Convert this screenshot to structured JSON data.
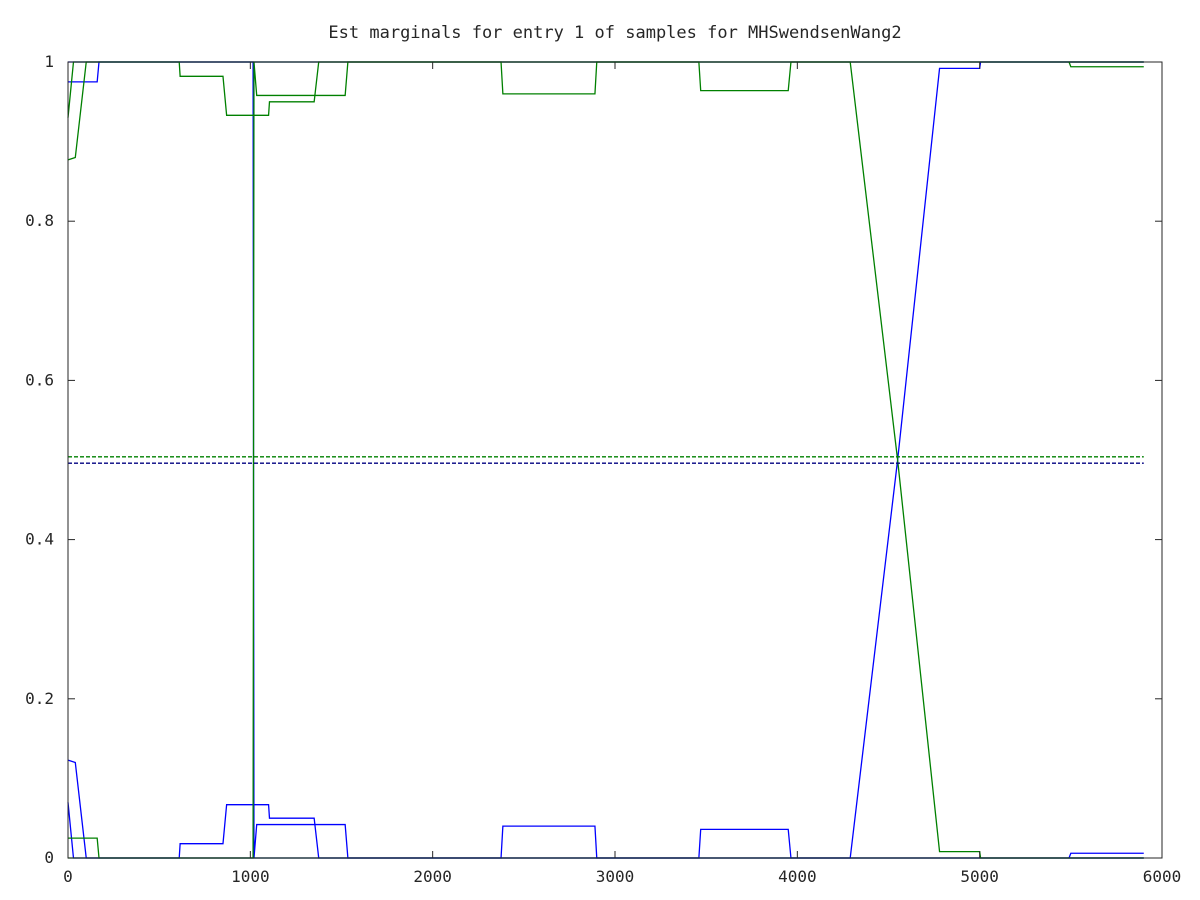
{
  "chart_data": {
    "type": "line",
    "title": "Est marginals for entry 1 of samples for MHSwendsenWang2",
    "xlabel": "",
    "ylabel": "",
    "xlim": [
      0,
      6000
    ],
    "ylim": [
      0,
      1
    ],
    "grid": false,
    "legend": "none",
    "x_ticks": [
      "0",
      "1000",
      "2000",
      "3000",
      "4000",
      "5000",
      "6000"
    ],
    "y_ticks": [
      "0",
      "0.2",
      "0.4",
      "0.6",
      "0.8",
      "1"
    ],
    "series": [
      {
        "color": "#0000ff",
        "style": "solid",
        "points": [
          [
            0,
            0.975
          ],
          [
            160,
            0.975
          ],
          [
            170,
            1.0
          ],
          [
            5900,
            1.0
          ]
        ]
      },
      {
        "color": "#0000ff",
        "style": "solid",
        "points": [
          [
            0,
            0.07
          ],
          [
            30,
            0.0
          ],
          [
            5900,
            0.0
          ]
        ]
      },
      {
        "color": "#0000ff",
        "style": "solid",
        "points": [
          [
            0,
            0.123
          ],
          [
            40,
            0.12
          ],
          [
            100,
            0.0
          ],
          [
            610,
            0.0
          ],
          [
            615,
            0.018
          ],
          [
            850,
            0.018
          ],
          [
            870,
            0.067
          ],
          [
            1100,
            0.067
          ],
          [
            1105,
            0.05
          ],
          [
            1350,
            0.05
          ],
          [
            1375,
            0.0
          ],
          [
            5900,
            0.0
          ]
        ]
      },
      {
        "color": "#0000ff",
        "style": "solid",
        "points": [
          [
            0,
            1.0
          ],
          [
            1015,
            1.0
          ],
          [
            1020,
            0.0
          ],
          [
            1035,
            0.042
          ],
          [
            1520,
            0.042
          ],
          [
            1535,
            0.0
          ],
          [
            2375,
            0.0
          ],
          [
            2385,
            0.04
          ],
          [
            2890,
            0.04
          ],
          [
            2900,
            0.0
          ],
          [
            3460,
            0.0
          ],
          [
            3470,
            0.036
          ],
          [
            3950,
            0.036
          ],
          [
            3965,
            0.0
          ],
          [
            4290,
            0.0
          ],
          [
            4550,
            0.5
          ],
          [
            4780,
            0.992
          ],
          [
            5000,
            0.992
          ],
          [
            5005,
            1.0
          ],
          [
            5900,
            1.0
          ]
        ]
      },
      {
        "color": "#0000ff",
        "style": "solid",
        "points": [
          [
            5490,
            0.0
          ],
          [
            5500,
            0.006
          ],
          [
            5900,
            0.006
          ]
        ]
      },
      {
        "color": "#008000",
        "style": "solid",
        "points": [
          [
            0,
            0.93
          ],
          [
            30,
            1.0
          ],
          [
            5900,
            1.0
          ]
        ]
      },
      {
        "color": "#008000",
        "style": "solid",
        "points": [
          [
            0,
            0.877
          ],
          [
            40,
            0.88
          ],
          [
            100,
            1.0
          ],
          [
            610,
            1.0
          ],
          [
            615,
            0.982
          ],
          [
            850,
            0.982
          ],
          [
            870,
            0.933
          ],
          [
            1100,
            0.933
          ],
          [
            1105,
            0.95
          ],
          [
            1350,
            0.95
          ],
          [
            1375,
            1.0
          ],
          [
            5900,
            1.0
          ]
        ]
      },
      {
        "color": "#008000",
        "style": "solid",
        "points": [
          [
            0,
            0.0
          ],
          [
            1015,
            0.0
          ],
          [
            1020,
            1.0
          ],
          [
            1035,
            0.958
          ],
          [
            1520,
            0.958
          ],
          [
            1535,
            1.0
          ],
          [
            2375,
            1.0
          ],
          [
            2385,
            0.96
          ],
          [
            2890,
            0.96
          ],
          [
            2900,
            1.0
          ],
          [
            3460,
            1.0
          ],
          [
            3470,
            0.964
          ],
          [
            3950,
            0.964
          ],
          [
            3965,
            1.0
          ],
          [
            4290,
            1.0
          ],
          [
            4550,
            0.5
          ],
          [
            4780,
            0.008
          ],
          [
            5000,
            0.008
          ],
          [
            5005,
            0.0
          ],
          [
            5900,
            0.0
          ]
        ]
      },
      {
        "color": "#008000",
        "style": "solid",
        "points": [
          [
            0,
            0.025
          ],
          [
            160,
            0.025
          ],
          [
            170,
            0.0
          ],
          [
            5900,
            0.0
          ]
        ]
      },
      {
        "color": "#008000",
        "style": "solid",
        "points": [
          [
            5490,
            1.0
          ],
          [
            5500,
            0.994
          ],
          [
            5900,
            0.994
          ]
        ]
      },
      {
        "color": "#008000",
        "style": "dashed",
        "points": [
          [
            0,
            0.504
          ],
          [
            5900,
            0.504
          ]
        ]
      },
      {
        "color": "#000080",
        "style": "dashed",
        "points": [
          [
            0,
            0.496
          ],
          [
            5900,
            0.496
          ]
        ]
      }
    ]
  }
}
